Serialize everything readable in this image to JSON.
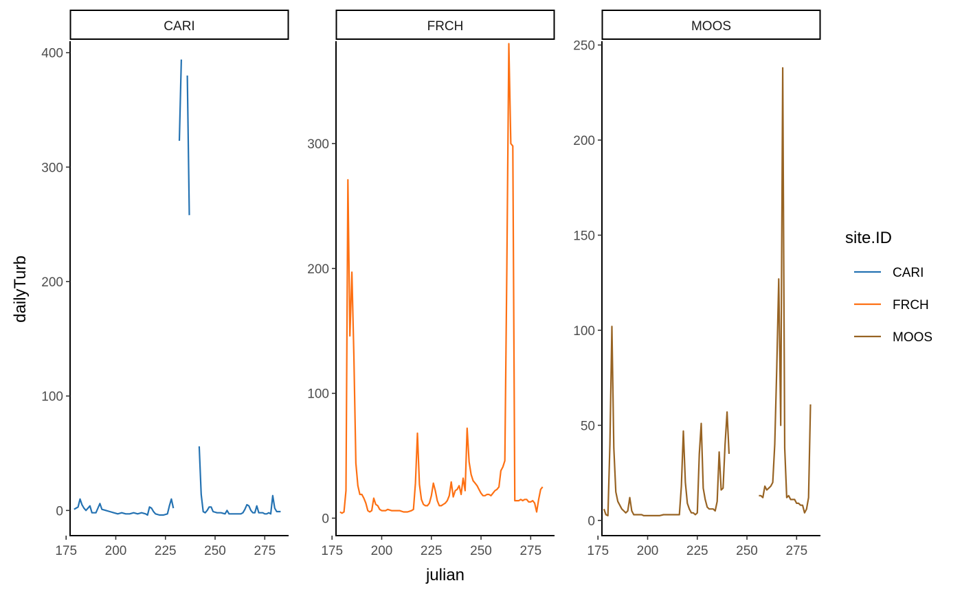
{
  "chart_data": {
    "type": "line",
    "xlabel": "julian",
    "ylabel": "dailyTurb",
    "x_ticks": [
      175,
      200,
      225,
      250,
      275
    ],
    "xlim": [
      177,
      287
    ],
    "legend": {
      "title": "site.ID",
      "placement": "right",
      "entries": [
        {
          "name": "CARI",
          "color": "#2472b2"
        },
        {
          "name": "FRCH",
          "color": "#fd7013"
        },
        {
          "name": "MOOS",
          "color": "#976323"
        }
      ]
    },
    "panels": [
      {
        "strip": "CARI",
        "color": "#2472b2",
        "ylim": [
          -22,
          410
        ],
        "y_ticks": [
          0,
          100,
          200,
          300,
          400
        ],
        "segments": [
          [
            [
              179,
              1
            ],
            [
              180,
              2
            ],
            [
              181,
              3
            ],
            [
              182,
              10
            ],
            [
              183,
              5
            ],
            [
              184,
              2
            ],
            [
              185,
              0
            ],
            [
              186,
              2
            ],
            [
              187,
              4
            ],
            [
              188,
              -2
            ],
            [
              189,
              -2
            ],
            [
              190,
              -2
            ],
            [
              191,
              2
            ],
            [
              192,
              6
            ],
            [
              193,
              1
            ],
            [
              195,
              0
            ],
            [
              197,
              -1
            ],
            [
              199,
              -2
            ],
            [
              201,
              -3
            ],
            [
              203,
              -2
            ],
            [
              205,
              -3
            ],
            [
              207,
              -3
            ],
            [
              209,
              -2
            ],
            [
              211,
              -3
            ],
            [
              213,
              -2
            ],
            [
              215,
              -3
            ],
            [
              216,
              -4
            ],
            [
              217,
              3
            ],
            [
              218,
              2
            ],
            [
              219,
              -1
            ],
            [
              220,
              -3
            ],
            [
              222,
              -4
            ],
            [
              224,
              -4
            ],
            [
              226,
              -3
            ],
            [
              227,
              4
            ],
            [
              228,
              10
            ],
            [
              229,
              2
            ]
          ],
          [
            [
              232,
              323
            ],
            [
              233,
              394
            ]
          ],
          [
            [
              236,
              380
            ],
            [
              237,
              258
            ]
          ],
          [
            [
              242,
              56
            ],
            [
              243,
              14
            ],
            [
              244,
              -1
            ],
            [
              245,
              -2
            ],
            [
              246,
              0
            ],
            [
              247,
              3
            ],
            [
              248,
              3
            ],
            [
              249,
              -1
            ],
            [
              251,
              -2
            ],
            [
              253,
              -2
            ],
            [
              255,
              -3
            ],
            [
              256,
              0
            ],
            [
              257,
              -3
            ],
            [
              259,
              -3
            ],
            [
              261,
              -3
            ],
            [
              263,
              -3
            ],
            [
              264,
              -2
            ],
            [
              265,
              1
            ],
            [
              266,
              5
            ],
            [
              267,
              4
            ],
            [
              268,
              0
            ],
            [
              269,
              -2
            ],
            [
              270,
              -2
            ],
            [
              271,
              4
            ],
            [
              272,
              -2
            ],
            [
              273,
              -2
            ],
            [
              274,
              -2
            ],
            [
              275,
              -3
            ],
            [
              276,
              -3
            ],
            [
              277,
              -2
            ],
            [
              278,
              -3
            ],
            [
              279,
              13
            ],
            [
              280,
              2
            ],
            [
              281,
              -1
            ],
            [
              282,
              -1
            ],
            [
              283,
              -1
            ]
          ]
        ]
      },
      {
        "strip": "FRCH",
        "color": "#fd7013",
        "ylim": [
          -14,
          382
        ],
        "y_ticks": [
          0,
          100,
          200,
          300
        ],
        "segments": [
          [
            [
              179,
              5
            ],
            [
              180,
              4
            ],
            [
              181,
              5
            ],
            [
              182,
              22
            ],
            [
              183,
              271
            ],
            [
              184,
              146
            ],
            [
              185,
              197
            ],
            [
              186,
              130
            ],
            [
              187,
              44
            ],
            [
              188,
              26
            ],
            [
              189,
              19
            ],
            [
              190,
              19
            ],
            [
              191,
              16
            ],
            [
              192,
              12
            ],
            [
              193,
              6
            ],
            [
              194,
              5
            ],
            [
              195,
              6
            ],
            [
              196,
              16
            ],
            [
              197,
              11
            ],
            [
              198,
              10
            ],
            [
              199,
              7
            ],
            [
              200,
              6
            ],
            [
              202,
              6
            ],
            [
              203,
              7
            ],
            [
              205,
              6
            ],
            [
              207,
              6
            ],
            [
              209,
              6
            ],
            [
              211,
              5
            ],
            [
              213,
              5
            ],
            [
              215,
              6
            ],
            [
              216,
              7
            ],
            [
              217,
              28
            ],
            [
              218,
              68
            ],
            [
              219,
              27
            ],
            [
              220,
              15
            ],
            [
              221,
              11
            ],
            [
              222,
              10
            ],
            [
              223,
              10
            ],
            [
              224,
              12
            ],
            [
              225,
              18
            ],
            [
              226,
              28
            ],
            [
              227,
              22
            ],
            [
              228,
              14
            ],
            [
              229,
              10
            ],
            [
              230,
              10
            ],
            [
              231,
              11
            ],
            [
              232,
              12
            ],
            [
              233,
              14
            ],
            [
              234,
              18
            ],
            [
              235,
              29
            ],
            [
              236,
              17
            ],
            [
              237,
              22
            ],
            [
              238,
              23
            ],
            [
              239,
              26
            ],
            [
              240,
              19
            ],
            [
              241,
              32
            ],
            [
              242,
              22
            ],
            [
              243,
              72
            ],
            [
              244,
              45
            ],
            [
              245,
              35
            ],
            [
              246,
              30
            ],
            [
              247,
              28
            ],
            [
              248,
              26
            ],
            [
              249,
              23
            ],
            [
              250,
              20
            ],
            [
              251,
              18
            ],
            [
              252,
              18
            ],
            [
              253,
              19
            ],
            [
              254,
              19
            ],
            [
              255,
              18
            ],
            [
              256,
              20
            ],
            [
              257,
              22
            ],
            [
              258,
              23
            ],
            [
              259,
              25
            ],
            [
              260,
              38
            ],
            [
              261,
              41
            ],
            [
              262,
              46
            ],
            [
              263,
              200
            ],
            [
              264,
              380
            ],
            [
              265,
              300
            ],
            [
              266,
              298
            ],
            [
              267,
              14
            ],
            [
              268,
              14
            ],
            [
              269,
              14
            ],
            [
              270,
              15
            ],
            [
              271,
              14
            ],
            [
              272,
              15
            ],
            [
              273,
              15
            ],
            [
              274,
              13
            ],
            [
              275,
              13
            ],
            [
              276,
              14
            ],
            [
              277,
              12
            ],
            [
              278,
              5
            ],
            [
              279,
              15
            ],
            [
              280,
              23
            ],
            [
              281,
              25
            ]
          ]
        ]
      },
      {
        "strip": "MOOS",
        "color": "#976323",
        "ylim": [
          -8,
          252
        ],
        "y_ticks": [
          0,
          50,
          100,
          150,
          200,
          250
        ],
        "segments": [
          [
            [
              178,
              6
            ],
            [
              179,
              3
            ],
            [
              180,
              2.5
            ],
            [
              181,
              40
            ],
            [
              182,
              102
            ],
            [
              183,
              38
            ],
            [
              184,
              15
            ],
            [
              185,
              10
            ],
            [
              186,
              8
            ],
            [
              187,
              6
            ],
            [
              188,
              5
            ],
            [
              189,
              4
            ],
            [
              190,
              5
            ],
            [
              191,
              12
            ],
            [
              192,
              5
            ],
            [
              193,
              3
            ],
            [
              194,
              3
            ],
            [
              195,
              3
            ],
            [
              196,
              3
            ],
            [
              197,
              3
            ],
            [
              198,
              2.5
            ],
            [
              200,
              2.5
            ],
            [
              202,
              2.5
            ],
            [
              204,
              2.5
            ],
            [
              206,
              2.5
            ],
            [
              208,
              3
            ],
            [
              210,
              3
            ],
            [
              212,
              3
            ],
            [
              214,
              3
            ],
            [
              216,
              3
            ],
            [
              217,
              18
            ],
            [
              218,
              47
            ],
            [
              219,
              20
            ],
            [
              220,
              9
            ],
            [
              221,
              6
            ],
            [
              222,
              4
            ],
            [
              223,
              4
            ],
            [
              224,
              3
            ],
            [
              225,
              4
            ],
            [
              226,
              35
            ],
            [
              227,
              51
            ],
            [
              228,
              17
            ],
            [
              229,
              11
            ],
            [
              230,
              7
            ],
            [
              231,
              6
            ],
            [
              232,
              6
            ],
            [
              233,
              6
            ],
            [
              234,
              5
            ],
            [
              235,
              10
            ],
            [
              236,
              36
            ],
            [
              237,
              16
            ],
            [
              238,
              17
            ],
            [
              239,
              40
            ],
            [
              240,
              57
            ],
            [
              241,
              35
            ]
          ],
          [
            [
              256,
              13
            ],
            [
              257,
              13
            ],
            [
              258,
              12
            ],
            [
              259,
              18
            ],
            [
              260,
              16
            ],
            [
              261,
              17
            ],
            [
              262,
              18
            ],
            [
              263,
              20
            ],
            [
              264,
              40
            ],
            [
              265,
              80
            ],
            [
              266,
              127
            ],
            [
              267,
              50
            ],
            [
              268,
              238
            ],
            [
              269,
              38
            ],
            [
              270,
              12
            ],
            [
              271,
              13
            ],
            [
              272,
              11
            ],
            [
              273,
              11
            ],
            [
              274,
              11
            ],
            [
              275,
              9
            ],
            [
              276,
              9
            ],
            [
              277,
              8
            ],
            [
              278,
              8
            ],
            [
              279,
              4
            ],
            [
              280,
              6
            ],
            [
              281,
              12
            ],
            [
              282,
              61
            ]
          ]
        ]
      }
    ]
  }
}
